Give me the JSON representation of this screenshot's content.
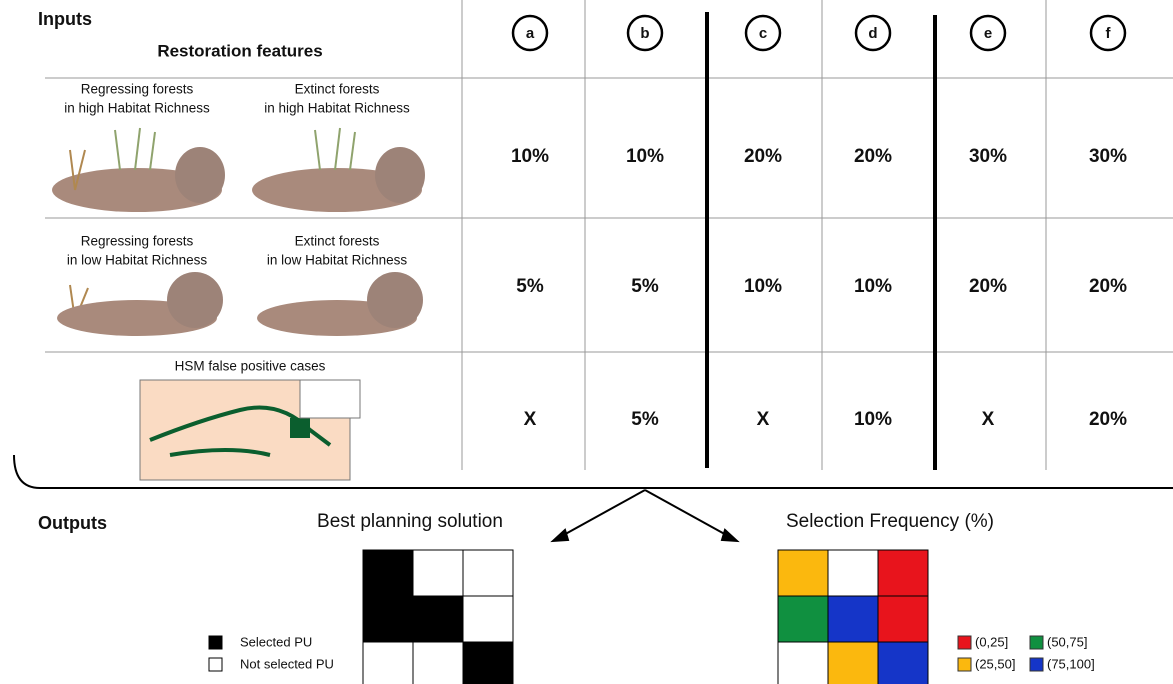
{
  "inputs_title": "Inputs",
  "table": {
    "header": "Restoration features",
    "columns": [
      "a",
      "b",
      "c",
      "d",
      "e",
      "f"
    ],
    "rows": [
      {
        "features": [
          [
            "Regressing forests",
            "in high Habitat Richness"
          ],
          [
            "Extinct forests",
            "in high Habitat Richness"
          ]
        ],
        "values": [
          "10%",
          "10%",
          "20%",
          "20%",
          "30%",
          "30%"
        ]
      },
      {
        "features": [
          [
            "Regressing forests",
            "in low Habitat Richness"
          ],
          [
            "Extinct forests",
            "in low Habitat Richness"
          ]
        ],
        "values": [
          "5%",
          "5%",
          "10%",
          "10%",
          "20%",
          "20%"
        ]
      },
      {
        "features": [
          [
            "HSM false positive cases"
          ]
        ],
        "values": [
          "X",
          "5%",
          "X",
          "10%",
          "X",
          "20%"
        ]
      }
    ]
  },
  "outputs": {
    "title": "Outputs",
    "best": {
      "title": "Best planning solution",
      "cells": [
        [
          "#000000",
          "#ffffff",
          "#ffffff"
        ],
        [
          "#000000",
          "#000000",
          "#ffffff"
        ],
        [
          "#ffffff",
          "#ffffff",
          "#000000"
        ]
      ],
      "legend": [
        {
          "label": "Selected PU",
          "color": "#000000"
        },
        {
          "label": "Not selected PU",
          "color": "#ffffff"
        }
      ]
    },
    "frequency": {
      "title": "Selection Frequency (%)",
      "cells": [
        [
          "#fbb80e",
          "#ffffff",
          "#e8141c"
        ],
        [
          "#109040",
          "#1535c8",
          "#e8141c"
        ],
        [
          "#ffffff",
          "#fbb80e",
          "#1535c8"
        ]
      ],
      "legend": [
        {
          "label": "(0,25]",
          "color": "#e8141c"
        },
        {
          "label": "(25,50]",
          "color": "#fbb80e"
        },
        {
          "label": "(50,75]",
          "color": "#109040"
        },
        {
          "label": "(75,100]",
          "color": "#1535c8"
        }
      ]
    }
  }
}
